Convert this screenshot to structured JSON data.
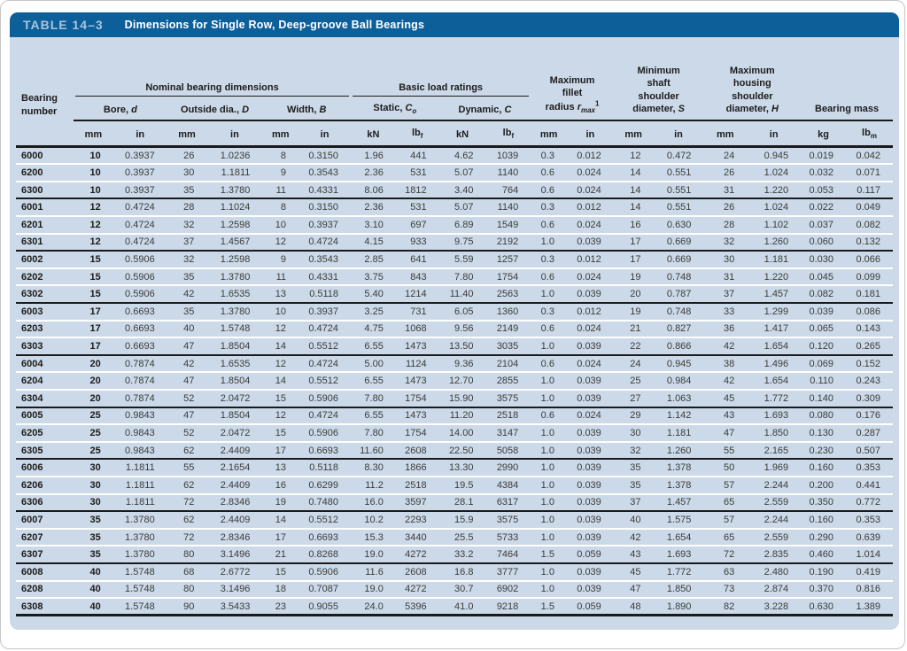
{
  "title_bar": {
    "tag": "TABLE 14–3",
    "title": "Dimensions for Single Row, Deep-groove Ball Bearings"
  },
  "header": {
    "bearing_number": [
      "Bearing",
      "number"
    ],
    "groups": {
      "nominal": "Nominal bearing dimensions",
      "load": "Basic load ratings"
    },
    "sub": [
      {
        "text": "Bore, ",
        "var": "d"
      },
      {
        "text": "Outside dia., ",
        "var": "D"
      },
      {
        "text": "Width, ",
        "var": "B"
      },
      {
        "text": "Static, ",
        "var": "C",
        "var_sub": "o"
      },
      {
        "text": "Dynamic, ",
        "var": "C"
      }
    ],
    "tall": [
      {
        "lines": [
          "Maximum",
          "fillet"
        ],
        "last": {
          "text": "radius ",
          "var": "r",
          "var_sub": "max",
          "sup": "1"
        }
      },
      {
        "lines": [
          "Minimum",
          "shaft",
          "shoulder"
        ],
        "last": {
          "text": "diameter, ",
          "var": "S"
        }
      },
      {
        "lines": [
          "Maximum",
          "housing",
          "shoulder"
        ],
        "last": {
          "text": "diameter, ",
          "var": "H"
        }
      },
      {
        "lines": [],
        "last": {
          "text": "Bearing mass"
        }
      }
    ],
    "units": [
      "mm",
      "in",
      "mm",
      "in",
      "mm",
      "in",
      "kN",
      {
        "b": "lb",
        "s": "f"
      },
      "kN",
      {
        "b": "lb",
        "s": "f"
      },
      "mm",
      "in",
      "mm",
      "in",
      "mm",
      "in",
      "kg",
      {
        "b": "lb",
        "s": "m"
      }
    ]
  },
  "group_size": 3,
  "rows": [
    [
      "6000",
      "10",
      "0.3937",
      "26",
      "1.0236",
      "8",
      "0.3150",
      "1.96",
      "441",
      "4.62",
      "1039",
      "0.3",
      "0.012",
      "12",
      "0.472",
      "24",
      "0.945",
      "0.019",
      "0.042"
    ],
    [
      "6200",
      "10",
      "0.3937",
      "30",
      "1.1811",
      "9",
      "0.3543",
      "2.36",
      "531",
      "5.07",
      "1140",
      "0.6",
      "0.024",
      "14",
      "0.551",
      "26",
      "1.024",
      "0.032",
      "0.071"
    ],
    [
      "6300",
      "10",
      "0.3937",
      "35",
      "1.3780",
      "11",
      "0.4331",
      "8.06",
      "1812",
      "3.40",
      "764",
      "0.6",
      "0.024",
      "14",
      "0.551",
      "31",
      "1.220",
      "0.053",
      "0.117"
    ],
    [
      "6001",
      "12",
      "0.4724",
      "28",
      "1.1024",
      "8",
      "0.3150",
      "2.36",
      "531",
      "5.07",
      "1140",
      "0.3",
      "0.012",
      "14",
      "0.551",
      "26",
      "1.024",
      "0.022",
      "0.049"
    ],
    [
      "6201",
      "12",
      "0.4724",
      "32",
      "1.2598",
      "10",
      "0.3937",
      "3.10",
      "697",
      "6.89",
      "1549",
      "0.6",
      "0.024",
      "16",
      "0.630",
      "28",
      "1.102",
      "0.037",
      "0.082"
    ],
    [
      "6301",
      "12",
      "0.4724",
      "37",
      "1.4567",
      "12",
      "0.4724",
      "4.15",
      "933",
      "9.75",
      "2192",
      "1.0",
      "0.039",
      "17",
      "0.669",
      "32",
      "1.260",
      "0.060",
      "0.132"
    ],
    [
      "6002",
      "15",
      "0.5906",
      "32",
      "1.2598",
      "9",
      "0.3543",
      "2.85",
      "641",
      "5.59",
      "1257",
      "0.3",
      "0.012",
      "17",
      "0.669",
      "30",
      "1.181",
      "0.030",
      "0.066"
    ],
    [
      "6202",
      "15",
      "0.5906",
      "35",
      "1.3780",
      "11",
      "0.4331",
      "3.75",
      "843",
      "7.80",
      "1754",
      "0.6",
      "0.024",
      "19",
      "0.748",
      "31",
      "1.220",
      "0.045",
      "0.099"
    ],
    [
      "6302",
      "15",
      "0.5906",
      "42",
      "1.6535",
      "13",
      "0.5118",
      "5.40",
      "1214",
      "11.40",
      "2563",
      "1.0",
      "0.039",
      "20",
      "0.787",
      "37",
      "1.457",
      "0.082",
      "0.181"
    ],
    [
      "6003",
      "17",
      "0.6693",
      "35",
      "1.3780",
      "10",
      "0.3937",
      "3.25",
      "731",
      "6.05",
      "1360",
      "0.3",
      "0.012",
      "19",
      "0.748",
      "33",
      "1.299",
      "0.039",
      "0.086"
    ],
    [
      "6203",
      "17",
      "0.6693",
      "40",
      "1.5748",
      "12",
      "0.4724",
      "4.75",
      "1068",
      "9.56",
      "2149",
      "0.6",
      "0.024",
      "21",
      "0.827",
      "36",
      "1.417",
      "0.065",
      "0.143"
    ],
    [
      "6303",
      "17",
      "0.6693",
      "47",
      "1.8504",
      "14",
      "0.5512",
      "6.55",
      "1473",
      "13.50",
      "3035",
      "1.0",
      "0.039",
      "22",
      "0.866",
      "42",
      "1.654",
      "0.120",
      "0.265"
    ],
    [
      "6004",
      "20",
      "0.7874",
      "42",
      "1.6535",
      "12",
      "0.4724",
      "5.00",
      "1124",
      "9.36",
      "2104",
      "0.6",
      "0.024",
      "24",
      "0.945",
      "38",
      "1.496",
      "0.069",
      "0.152"
    ],
    [
      "6204",
      "20",
      "0.7874",
      "47",
      "1.8504",
      "14",
      "0.5512",
      "6.55",
      "1473",
      "12.70",
      "2855",
      "1.0",
      "0.039",
      "25",
      "0.984",
      "42",
      "1.654",
      "0.110",
      "0.243"
    ],
    [
      "6304",
      "20",
      "0.7874",
      "52",
      "2.0472",
      "15",
      "0.5906",
      "7.80",
      "1754",
      "15.90",
      "3575",
      "1.0",
      "0.039",
      "27",
      "1.063",
      "45",
      "1.772",
      "0.140",
      "0.309"
    ],
    [
      "6005",
      "25",
      "0.9843",
      "47",
      "1.8504",
      "12",
      "0.4724",
      "6.55",
      "1473",
      "11.20",
      "2518",
      "0.6",
      "0.024",
      "29",
      "1.142",
      "43",
      "1.693",
      "0.080",
      "0.176"
    ],
    [
      "6205",
      "25",
      "0.9843",
      "52",
      "2.0472",
      "15",
      "0.5906",
      "7.80",
      "1754",
      "14.00",
      "3147",
      "1.0",
      "0.039",
      "30",
      "1.181",
      "47",
      "1.850",
      "0.130",
      "0.287"
    ],
    [
      "6305",
      "25",
      "0.9843",
      "62",
      "2.4409",
      "17",
      "0.6693",
      "11.60",
      "2608",
      "22.50",
      "5058",
      "1.0",
      "0.039",
      "32",
      "1.260",
      "55",
      "2.165",
      "0.230",
      "0.507"
    ],
    [
      "6006",
      "30",
      "1.1811",
      "55",
      "2.1654",
      "13",
      "0.5118",
      "8.30",
      "1866",
      "13.30",
      "2990",
      "1.0",
      "0.039",
      "35",
      "1.378",
      "50",
      "1.969",
      "0.160",
      "0.353"
    ],
    [
      "6206",
      "30",
      "1.1811",
      "62",
      "2.4409",
      "16",
      "0.6299",
      "11.2",
      "2518",
      "19.5",
      "4384",
      "1.0",
      "0.039",
      "35",
      "1.378",
      "57",
      "2.244",
      "0.200",
      "0.441"
    ],
    [
      "6306",
      "30",
      "1.1811",
      "72",
      "2.8346",
      "19",
      "0.7480",
      "16.0",
      "3597",
      "28.1",
      "6317",
      "1.0",
      "0.039",
      "37",
      "1.457",
      "65",
      "2.559",
      "0.350",
      "0.772"
    ],
    [
      "6007",
      "35",
      "1.3780",
      "62",
      "2.4409",
      "14",
      "0.5512",
      "10.2",
      "2293",
      "15.9",
      "3575",
      "1.0",
      "0.039",
      "40",
      "1.575",
      "57",
      "2.244",
      "0.160",
      "0.353"
    ],
    [
      "6207",
      "35",
      "1.3780",
      "72",
      "2.8346",
      "17",
      "0.6693",
      "15.3",
      "3440",
      "25.5",
      "5733",
      "1.0",
      "0.039",
      "42",
      "1.654",
      "65",
      "2.559",
      "0.290",
      "0.639"
    ],
    [
      "6307",
      "35",
      "1.3780",
      "80",
      "3.1496",
      "21",
      "0.8268",
      "19.0",
      "4272",
      "33.2",
      "7464",
      "1.5",
      "0.059",
      "43",
      "1.693",
      "72",
      "2.835",
      "0.460",
      "1.014"
    ],
    [
      "6008",
      "40",
      "1.5748",
      "68",
      "2.6772",
      "15",
      "0.5906",
      "11.6",
      "2608",
      "16.8",
      "3777",
      "1.0",
      "0.039",
      "45",
      "1.772",
      "63",
      "2.480",
      "0.190",
      "0.419"
    ],
    [
      "6208",
      "40",
      "1.5748",
      "80",
      "3.1496",
      "18",
      "0.7087",
      "19.0",
      "4272",
      "30.7",
      "6902",
      "1.0",
      "0.039",
      "47",
      "1.850",
      "73",
      "2.874",
      "0.370",
      "0.816"
    ],
    [
      "6308",
      "40",
      "1.5748",
      "90",
      "3.5433",
      "23",
      "0.9055",
      "24.0",
      "5396",
      "41.0",
      "9218",
      "1.5",
      "0.059",
      "48",
      "1.890",
      "82",
      "3.228",
      "0.630",
      "1.389"
    ]
  ],
  "colors": {
    "bar_blue": "#0d5f9a",
    "panel_blue": "#cbd9e8",
    "tag_text": "#a9c5dd",
    "rule_black": "#1a1a1a"
  }
}
